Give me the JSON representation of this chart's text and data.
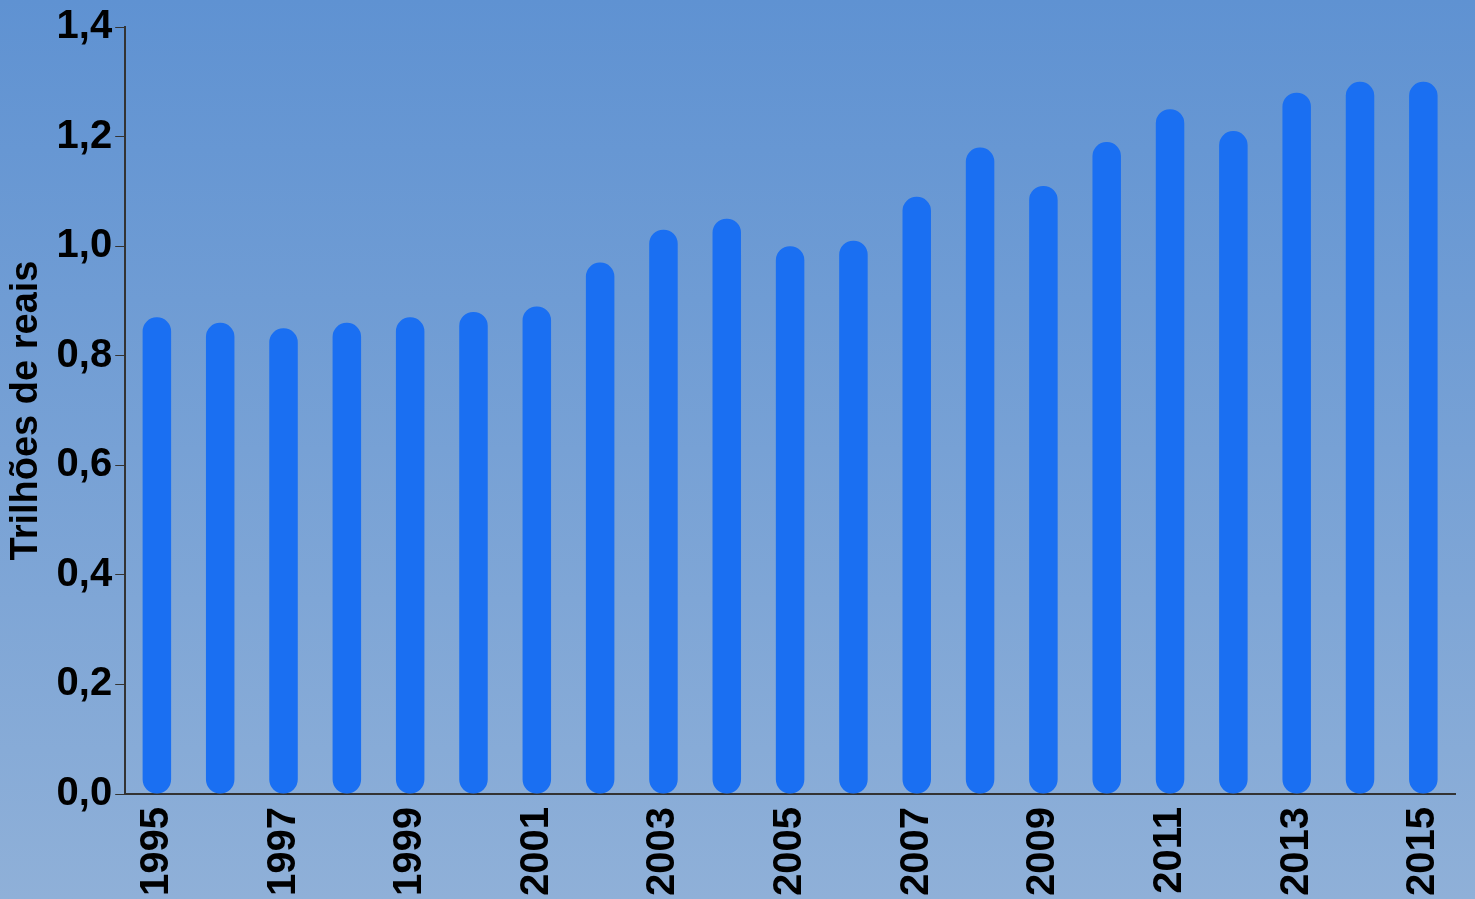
{
  "chart_data": {
    "type": "bar",
    "ylabel": "Trilhões de reais",
    "categories": [
      "1995",
      null,
      "1997",
      null,
      "1999",
      null,
      "2001",
      null,
      "2003",
      null,
      "2005",
      null,
      "2007",
      null,
      "2009",
      null,
      "2011",
      null,
      "2013",
      null,
      "2015"
    ],
    "values": [
      0.87,
      0.86,
      0.85,
      0.86,
      0.87,
      0.88,
      0.89,
      0.97,
      1.03,
      1.05,
      1.0,
      1.01,
      1.09,
      1.18,
      1.11,
      1.19,
      1.25,
      1.21,
      1.28,
      1.3,
      1.3
    ],
    "color": "#1a6ff2",
    "ylim": [
      0,
      1.4
    ],
    "yticks": [
      {
        "value": 0,
        "label": "0,0"
      },
      {
        "value": 0.2,
        "label": "0,2"
      },
      {
        "value": 0.4,
        "label": "0,4"
      },
      {
        "value": 0.6,
        "label": "0,6"
      },
      {
        "value": 0.8,
        "label": "0,8"
      },
      {
        "value": 1,
        "label": "1,0"
      },
      {
        "value": 1.2,
        "label": "1,2"
      },
      {
        "value": 1.4,
        "label": "1,4"
      }
    ],
    "grid": false,
    "legend": false
  }
}
